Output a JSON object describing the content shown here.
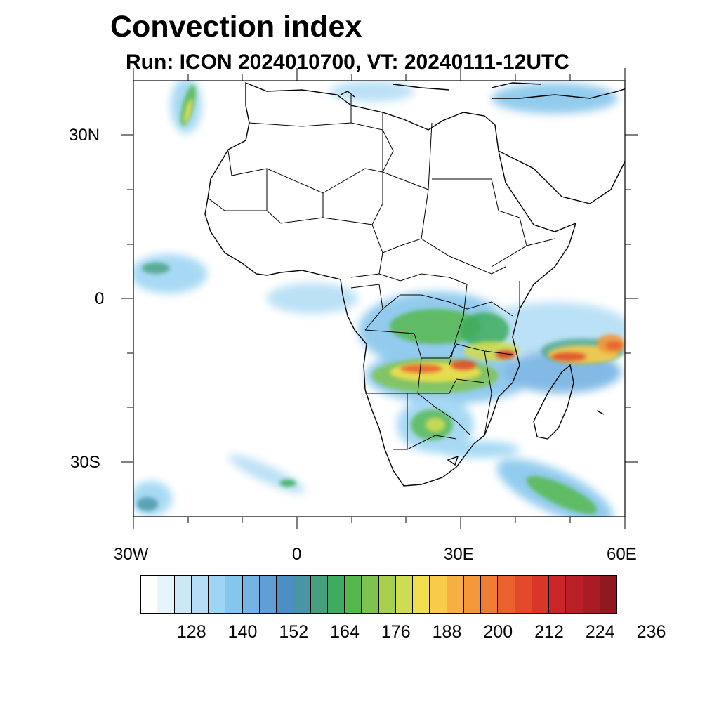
{
  "title": "Convection index",
  "subtitle": "Run: ICON 2024010700,  VT: 20240111-12UTC",
  "axes": {
    "lat_labels": [
      {
        "label": "30N",
        "lat": 30
      },
      {
        "label": "0",
        "lat": 0
      },
      {
        "label": "30S",
        "lat": -30
      }
    ],
    "lon_labels": [
      {
        "label": "30W",
        "lon": -30
      },
      {
        "label": "0",
        "lon": 0
      },
      {
        "label": "30E",
        "lon": 30
      },
      {
        "label": "60E",
        "lon": 60
      }
    ],
    "lon_range": [
      -30,
      60
    ],
    "lat_range": [
      -40,
      40
    ]
  },
  "colorbar": {
    "levels": [
      122,
      125,
      128,
      131,
      134,
      137,
      140,
      143,
      146,
      149,
      152,
      155,
      158,
      161,
      164,
      167,
      170,
      173,
      176,
      179,
      182,
      185,
      188,
      191,
      194,
      197,
      200,
      203,
      206,
      209,
      212,
      215,
      218,
      221,
      224,
      227,
      230,
      233,
      236
    ],
    "colors": [
      "#ffffff",
      "#e8f4fc",
      "#cce8f7",
      "#b4def5",
      "#9dd5f3",
      "#86c6ec",
      "#74b3e3",
      "#5f9fd6",
      "#4b8fc4",
      "#4795a5",
      "#44a07f",
      "#3dac5e",
      "#55b84c",
      "#7fc34f",
      "#a9cf4f",
      "#cfdc52",
      "#f0e050",
      "#f8cc4a",
      "#f6b042",
      "#f4963a",
      "#f07c33",
      "#ea612d",
      "#e24a2b",
      "#d9362a",
      "#cc2529",
      "#b91f27",
      "#a81c25",
      "#8e1a1f"
    ],
    "tick_labels": [
      "128",
      "140",
      "152",
      "164",
      "176",
      "188",
      "200",
      "212",
      "224",
      "236"
    ]
  }
}
